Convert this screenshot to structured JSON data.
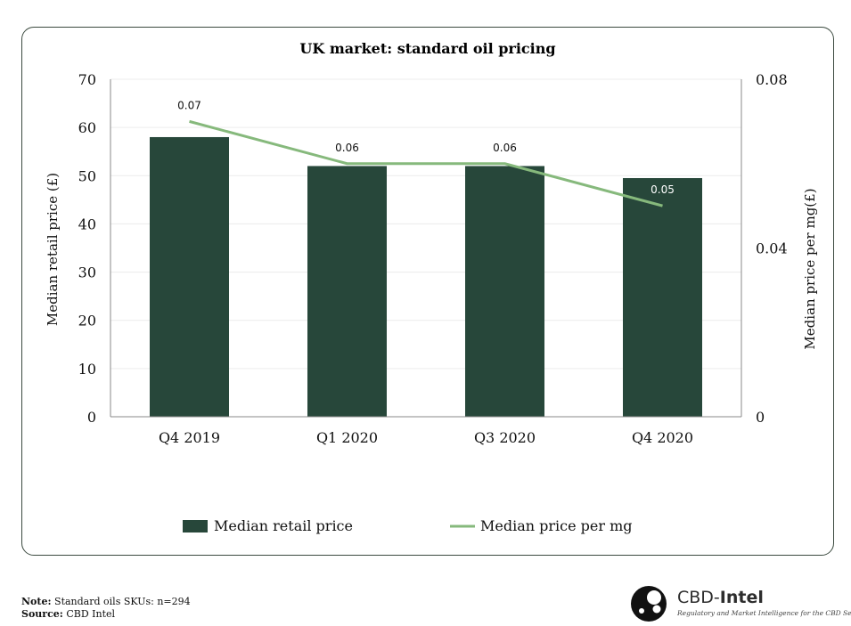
{
  "chart_data": {
    "type": "bar",
    "title": "UK market: standard oil pricing",
    "categories": [
      "Q4 2019",
      "Q1 2020",
      "Q3 2020",
      "Q4 2020"
    ],
    "series": [
      {
        "name": "Median retail price",
        "type": "bar",
        "axis": "left",
        "values": [
          58,
          52,
          52,
          49.5
        ],
        "color": "#27473a"
      },
      {
        "name": "Median price per mg",
        "type": "line",
        "axis": "right",
        "values": [
          0.07,
          0.06,
          0.06,
          0.05
        ],
        "labels": [
          "0.07",
          "0.06",
          "0.06",
          "0.05"
        ],
        "color": "#86b97c"
      }
    ],
    "ylabel": "Median retail price (£)",
    "ylim": [
      0,
      70
    ],
    "yticks": [
      "0",
      "10",
      "20",
      "30",
      "40",
      "50",
      "60",
      "70"
    ],
    "y2label": "Median price per mg(£)",
    "y2lim": [
      0,
      0.08
    ],
    "y2ticks": [
      "0",
      "0.04",
      "0.08"
    ],
    "grid": true,
    "legend": "bottom-center"
  },
  "footer": {
    "note_label": "Note:",
    "note_text": " Standard oils SKUs: n=294",
    "source_label": "Source:",
    "source_text": " CBD Intel"
  },
  "brand": {
    "name_a": "CBD-",
    "name_b": "Intel",
    "tagline": "Regulatory and Market Intelligence for the CBD Sector"
  }
}
